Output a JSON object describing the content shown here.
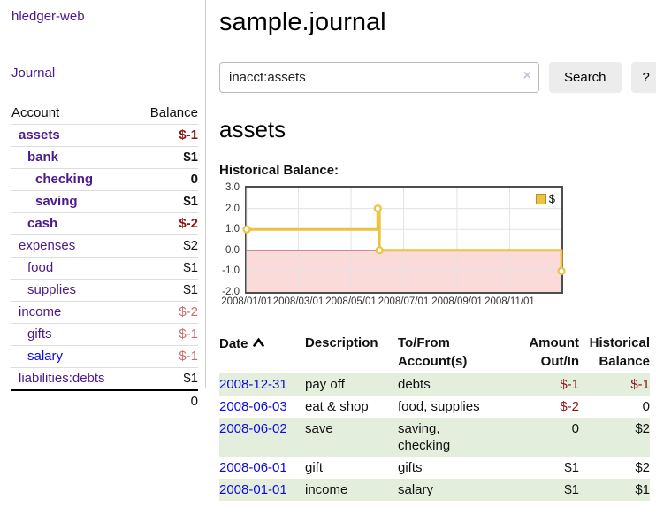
{
  "app": {
    "brand": "hledger-web",
    "nav_journal": "Journal"
  },
  "sidebar": {
    "account_header": "Account",
    "balance_header": "Balance",
    "rows": [
      {
        "account": "assets",
        "balance": "$-1"
      },
      {
        "account": "bank",
        "balance": "$1"
      },
      {
        "account": "checking",
        "balance": "0"
      },
      {
        "account": "saving",
        "balance": "$1"
      },
      {
        "account": "cash",
        "balance": "$-2"
      },
      {
        "account": "expenses",
        "balance": "$2"
      },
      {
        "account": "food",
        "balance": "$1"
      },
      {
        "account": "supplies",
        "balance": "$1"
      },
      {
        "account": "income",
        "balance": "$-2"
      },
      {
        "account": "gifts",
        "balance": "$-1"
      },
      {
        "account": "salary",
        "balance": "$-1"
      },
      {
        "account": "liabilities:debts",
        "balance": "$1"
      }
    ],
    "total": "0"
  },
  "main": {
    "title": "sample.journal",
    "search": {
      "value": "inacct:assets",
      "clear_label": "×",
      "search_button": "Search",
      "help_button": "?"
    },
    "account_heading": "assets",
    "chart_heading": "Historical Balance:"
  },
  "chart_data": {
    "type": "line",
    "step": true,
    "title": "Historical Balance",
    "series": [
      {
        "name": "$",
        "color": "#edc240",
        "points": [
          [
            "2008-01-01",
            1
          ],
          [
            "2008-06-01",
            2
          ],
          [
            "2008-06-03",
            0
          ],
          [
            "2008-12-31",
            -1
          ]
        ]
      }
    ],
    "x_range": [
      "2008-01-01",
      "2008-12-31"
    ],
    "ylim": [
      -2,
      3
    ],
    "y_ticks": [
      "3.0",
      "2.0",
      "1.0",
      "0.0",
      "-1.0",
      "-2.0"
    ],
    "x_ticks": [
      "2008/01/01",
      "2008/03/01",
      "2008/05/01",
      "2008/07/01",
      "2008/09/01",
      "2008/11/01"
    ],
    "legend": "$",
    "legend_position": "top-right",
    "grid": true,
    "gridline_color": "#e3e3e3",
    "negative_region_color": "#fbdada",
    "zero_line_color": "#8b0000",
    "border_color": "#4d4d4d"
  },
  "register": {
    "headers": {
      "date": "Date",
      "description": "Description",
      "account": "To/From Account(s)",
      "amount": "Amount Out/In",
      "balance": "Historical Balance"
    },
    "rows": [
      {
        "date": "2008-12-31",
        "description": "pay off",
        "account": "debts",
        "amount": "$-1",
        "balance": "$-1"
      },
      {
        "date": "2008-06-03",
        "description": "eat & shop",
        "account": "food, supplies",
        "amount": "$-2",
        "balance": "0"
      },
      {
        "date": "2008-06-02",
        "description": "save",
        "account": "saving, checking",
        "amount": "0",
        "balance": "$2"
      },
      {
        "date": "2008-06-01",
        "description": "gift",
        "account": "gifts",
        "amount": "$1",
        "balance": "$2"
      },
      {
        "date": "2008-01-01",
        "description": "income",
        "account": "salary",
        "amount": "$1",
        "balance": "$1"
      }
    ]
  }
}
